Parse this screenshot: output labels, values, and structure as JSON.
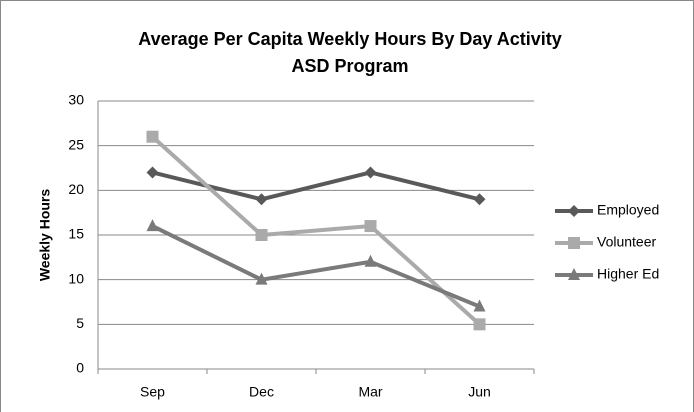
{
  "chart_data": {
    "type": "line",
    "title": "Average Per Capita Weekly Hours By Day Activity",
    "subtitle": "ASD Program",
    "y_label": "Weekly Hours",
    "categories": [
      "Sep",
      "Dec",
      "Mar",
      "Jun"
    ],
    "series": [
      {
        "name": "Employed",
        "color": "#595959",
        "marker": "diamond",
        "values": [
          22,
          19,
          22,
          19
        ]
      },
      {
        "name": "Volunteer",
        "color": "#aaaaaa",
        "marker": "square",
        "values": [
          26,
          15,
          16,
          5
        ]
      },
      {
        "name": "Higher Ed",
        "color": "#7a7a7a",
        "marker": "triangle",
        "values": [
          16,
          10,
          12,
          7
        ]
      }
    ],
    "ylim": [
      0,
      30
    ],
    "yticks": [
      0,
      5,
      10,
      15,
      20,
      25,
      30
    ],
    "grid": true,
    "legend": "right"
  }
}
